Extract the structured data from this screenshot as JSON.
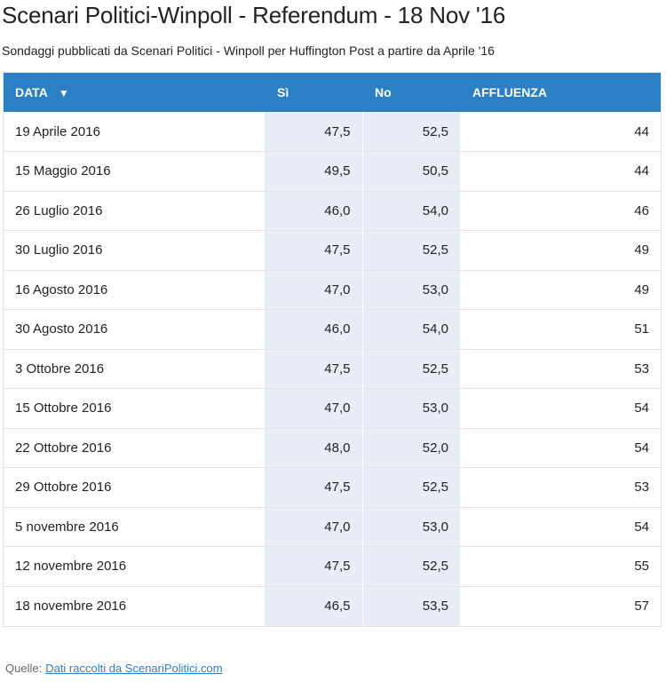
{
  "title": "Scenari Politici-Winpoll - Referendum - 18 Nov '16",
  "subtitle": "Sondaggi pubblicati da Scenari Politici - Winpoll per Huffington Post a partire da Aprile '16",
  "table": {
    "headers": {
      "data": "DATA",
      "sort_icon": "▼",
      "si": "Sì",
      "no": "No",
      "affluenza": "AFFLUENZA"
    },
    "rows": [
      {
        "data": "19 Aprile 2016",
        "si": "47,5",
        "no": "52,5",
        "affluenza": "44"
      },
      {
        "data": "15 Maggio 2016",
        "si": "49,5",
        "no": "50,5",
        "affluenza": "44"
      },
      {
        "data": "26 Luglio 2016",
        "si": "46,0",
        "no": "54,0",
        "affluenza": "46"
      },
      {
        "data": "30 Luglio 2016",
        "si": "47,5",
        "no": "52,5",
        "affluenza": "49"
      },
      {
        "data": "16 Agosto 2016",
        "si": "47,0",
        "no": "53,0",
        "affluenza": "49"
      },
      {
        "data": "30 Agosto 2016",
        "si": "46,0",
        "no": "54,0",
        "affluenza": "51"
      },
      {
        "data": "3 Ottobre 2016",
        "si": "47,5",
        "no": "52,5",
        "affluenza": "53"
      },
      {
        "data": "15 Ottobre 2016",
        "si": "47,0",
        "no": "53,0",
        "affluenza": "54"
      },
      {
        "data": "22 Ottobre 2016",
        "si": "48,0",
        "no": "52,0",
        "affluenza": "54"
      },
      {
        "data": "29 Ottobre 2016",
        "si": "47,5",
        "no": "52,5",
        "affluenza": "53"
      },
      {
        "data": "5 novembre 2016",
        "si": "47,0",
        "no": "53,0",
        "affluenza": "54"
      },
      {
        "data": "12 novembre 2016",
        "si": "47,5",
        "no": "52,5",
        "affluenza": "55"
      },
      {
        "data": "18 novembre 2016",
        "si": "46,5",
        "no": "53,5",
        "affluenza": "57"
      }
    ]
  },
  "source": {
    "label": "Quelle:",
    "link_text": "Dati raccolti da ScenariPolitici.com"
  },
  "colors": {
    "header_bg": "#2b7fc4",
    "highlight_col": "#e8edf7",
    "link": "#2b7fc4"
  }
}
